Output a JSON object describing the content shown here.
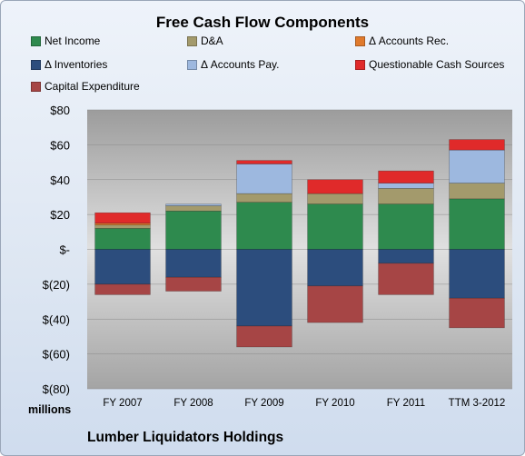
{
  "chart_data": {
    "type": "bar",
    "stacked": true,
    "title": "Free Cash Flow Components",
    "ylabel": "",
    "xlabel": "",
    "units_label": "millions",
    "footer": "Lumber Liquidators Holdings",
    "ylim": [
      -80,
      80
    ],
    "yticks": [
      80,
      60,
      40,
      20,
      0,
      -20,
      -40,
      -60,
      -80
    ],
    "ytick_labels": [
      "$80",
      "$60",
      "$40",
      "$20",
      "$-",
      "$(20)",
      "$(40)",
      "$(60)",
      "$(80)"
    ],
    "categories": [
      "FY 2007",
      "FY 2008",
      "FY 2009",
      "FY 2010",
      "FY 2011",
      "TTM 3-2012"
    ],
    "legend_position": "top",
    "series": [
      {
        "name": "Net Income",
        "color": "#2e8a4e",
        "values": [
          12,
          22,
          27,
          26,
          26,
          29
        ]
      },
      {
        "name": "D&A",
        "color": "#a39a6c",
        "values": [
          2,
          3,
          5,
          6,
          9,
          9
        ]
      },
      {
        "name": "Δ Accounts Rec.",
        "color": "#e07a2c",
        "values": [
          1,
          0,
          0,
          0,
          0,
          0
        ]
      },
      {
        "name": "Δ Inventories",
        "color": "#2c4d7d",
        "values": [
          -20,
          -16,
          -44,
          -21,
          -8,
          -28
        ]
      },
      {
        "name": "Δ Accounts Pay.",
        "color": "#9db8df",
        "values": [
          0,
          1,
          17,
          0,
          3,
          19
        ]
      },
      {
        "name": "Questionable Cash Sources",
        "color": "#e02a2a",
        "values": [
          6,
          0,
          2,
          8,
          7,
          6
        ]
      },
      {
        "name": "Capital Expenditure",
        "color": "#a64545",
        "values": [
          -6,
          -8,
          -12,
          -21,
          -18,
          -17
        ]
      }
    ]
  }
}
